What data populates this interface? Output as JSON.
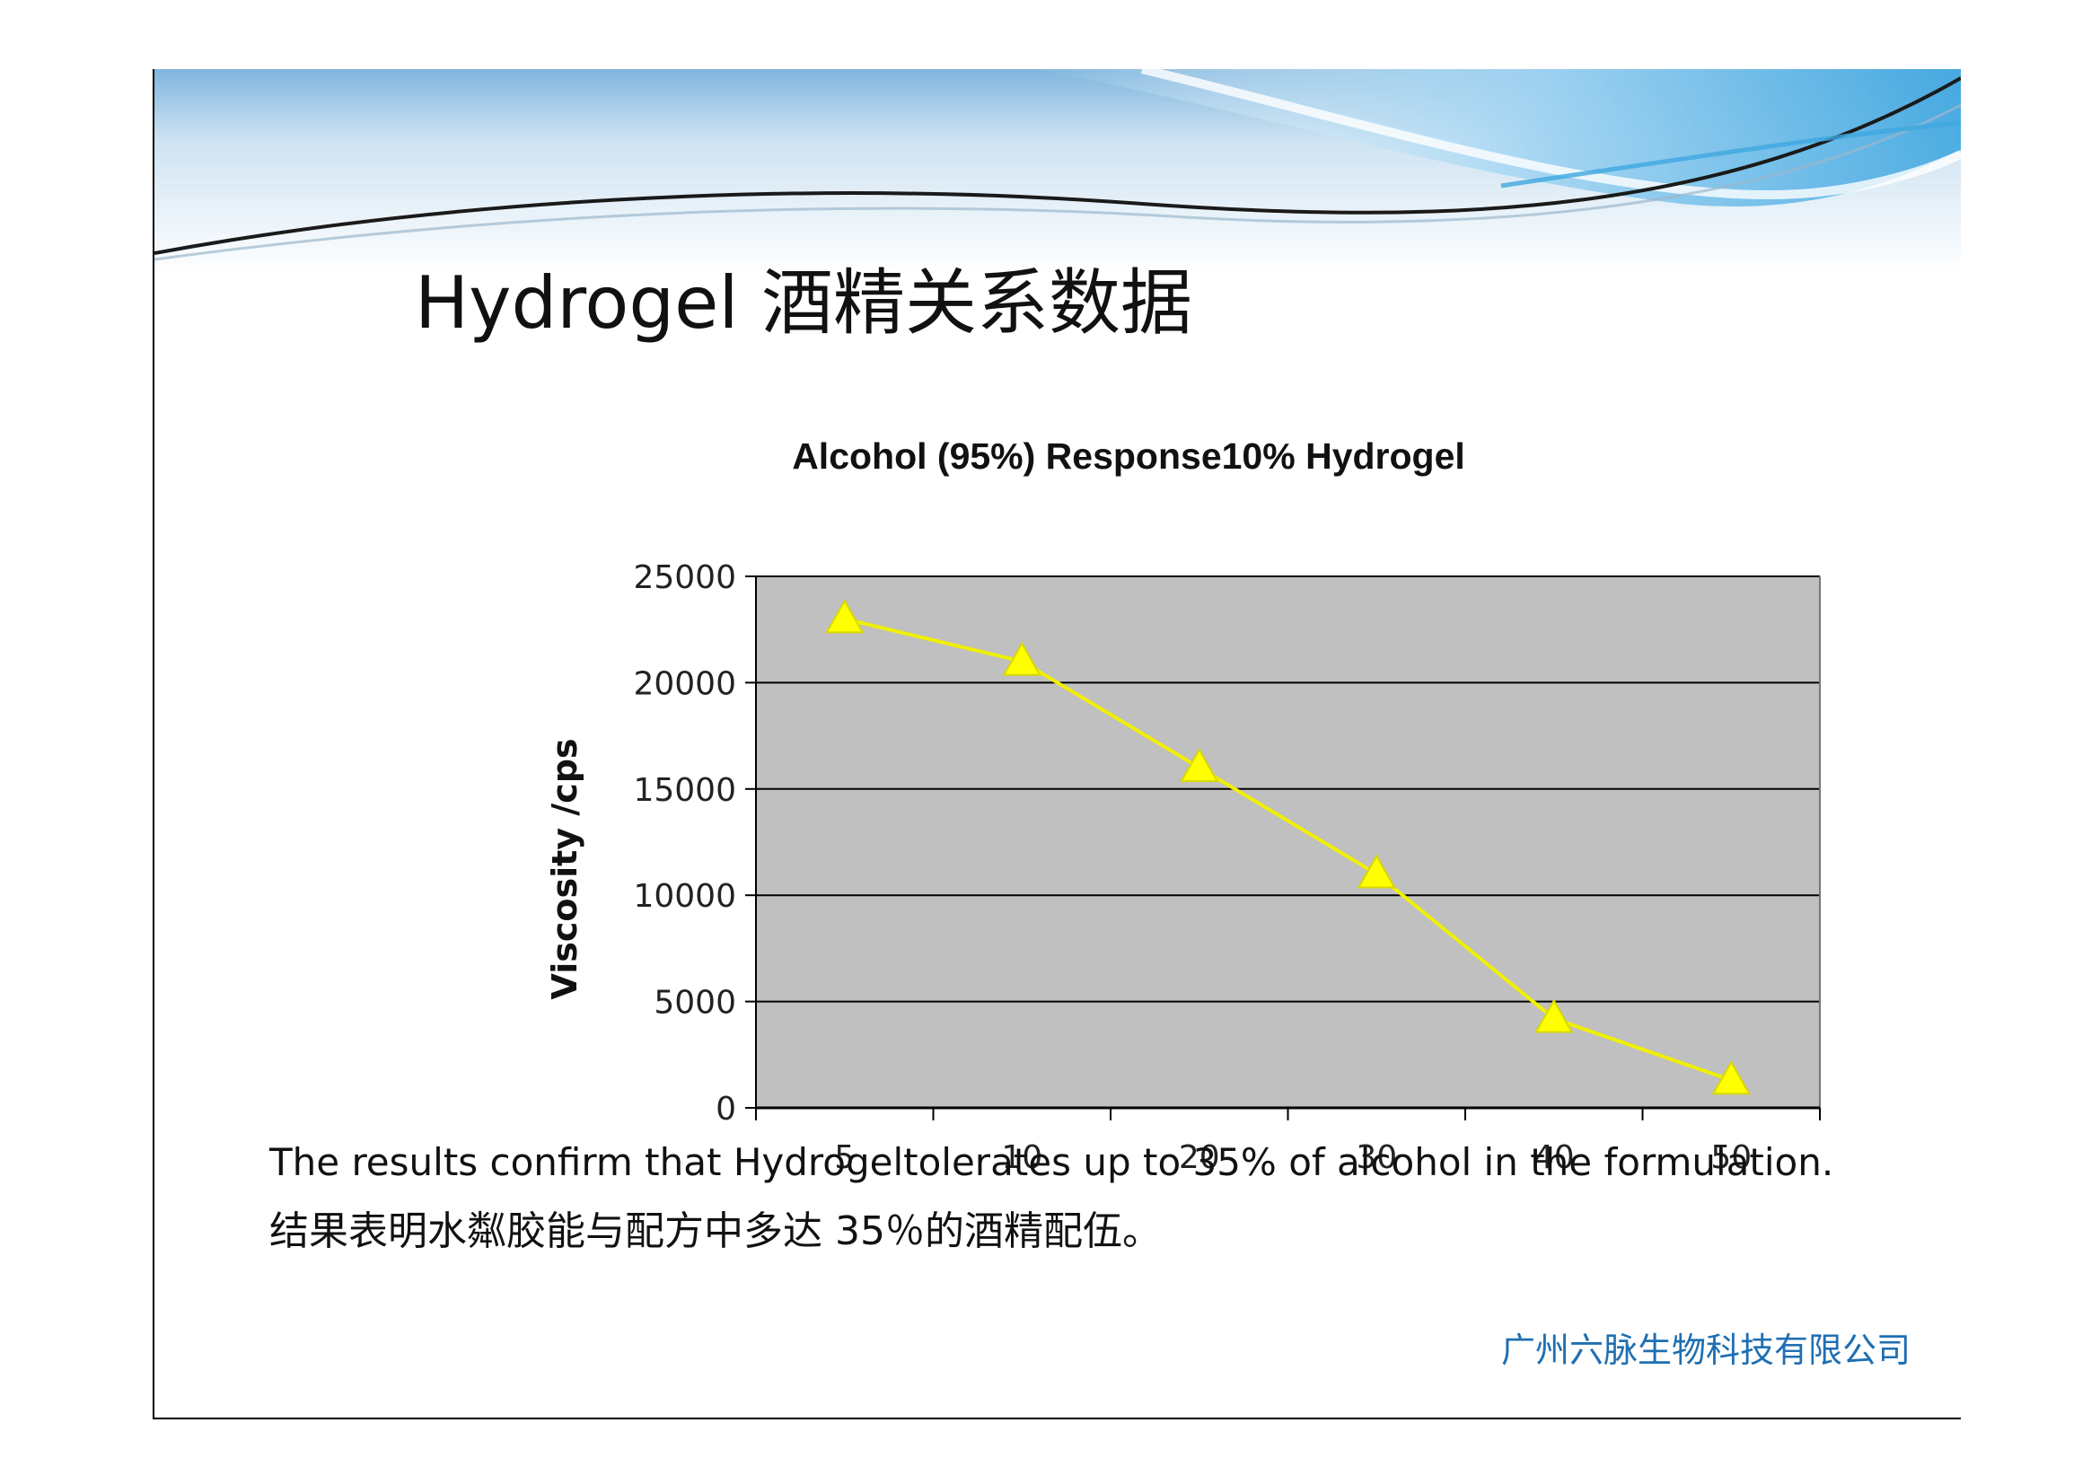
{
  "slide": {
    "title": "Hydrogel 酒精关系数据",
    "caption_en": "The results confirm that Hydrogeltolerates up to 35% of alcohol in the formulation.",
    "caption_zh": "结果表明水粼胶能与配方中多达 35％的酒精配伍。",
    "company": "广州六脉生物科技有限公司"
  },
  "colors": {
    "plot_background": "#c0c0c0",
    "series_line": "#f0f000",
    "marker": "#ffff00",
    "header_blue": "#4ea3d8",
    "company_text": "#1f6fb2"
  },
  "chart_data": {
    "type": "line",
    "title": "Alcohol (95%) Response10% Hydrogel",
    "xlabel": "",
    "ylabel": "Viscosity /cps",
    "categories": [
      "5",
      "10",
      "20",
      "30",
      "40",
      "50"
    ],
    "series": [
      {
        "values": [
          23000,
          21000,
          16000,
          11000,
          4200,
          1300
        ],
        "marker": "triangle"
      }
    ],
    "yticks": [
      "0",
      "5000",
      "10000",
      "15000",
      "20000",
      "25000"
    ],
    "ylim": [
      0,
      25000
    ],
    "grid": true,
    "legend": "none"
  }
}
